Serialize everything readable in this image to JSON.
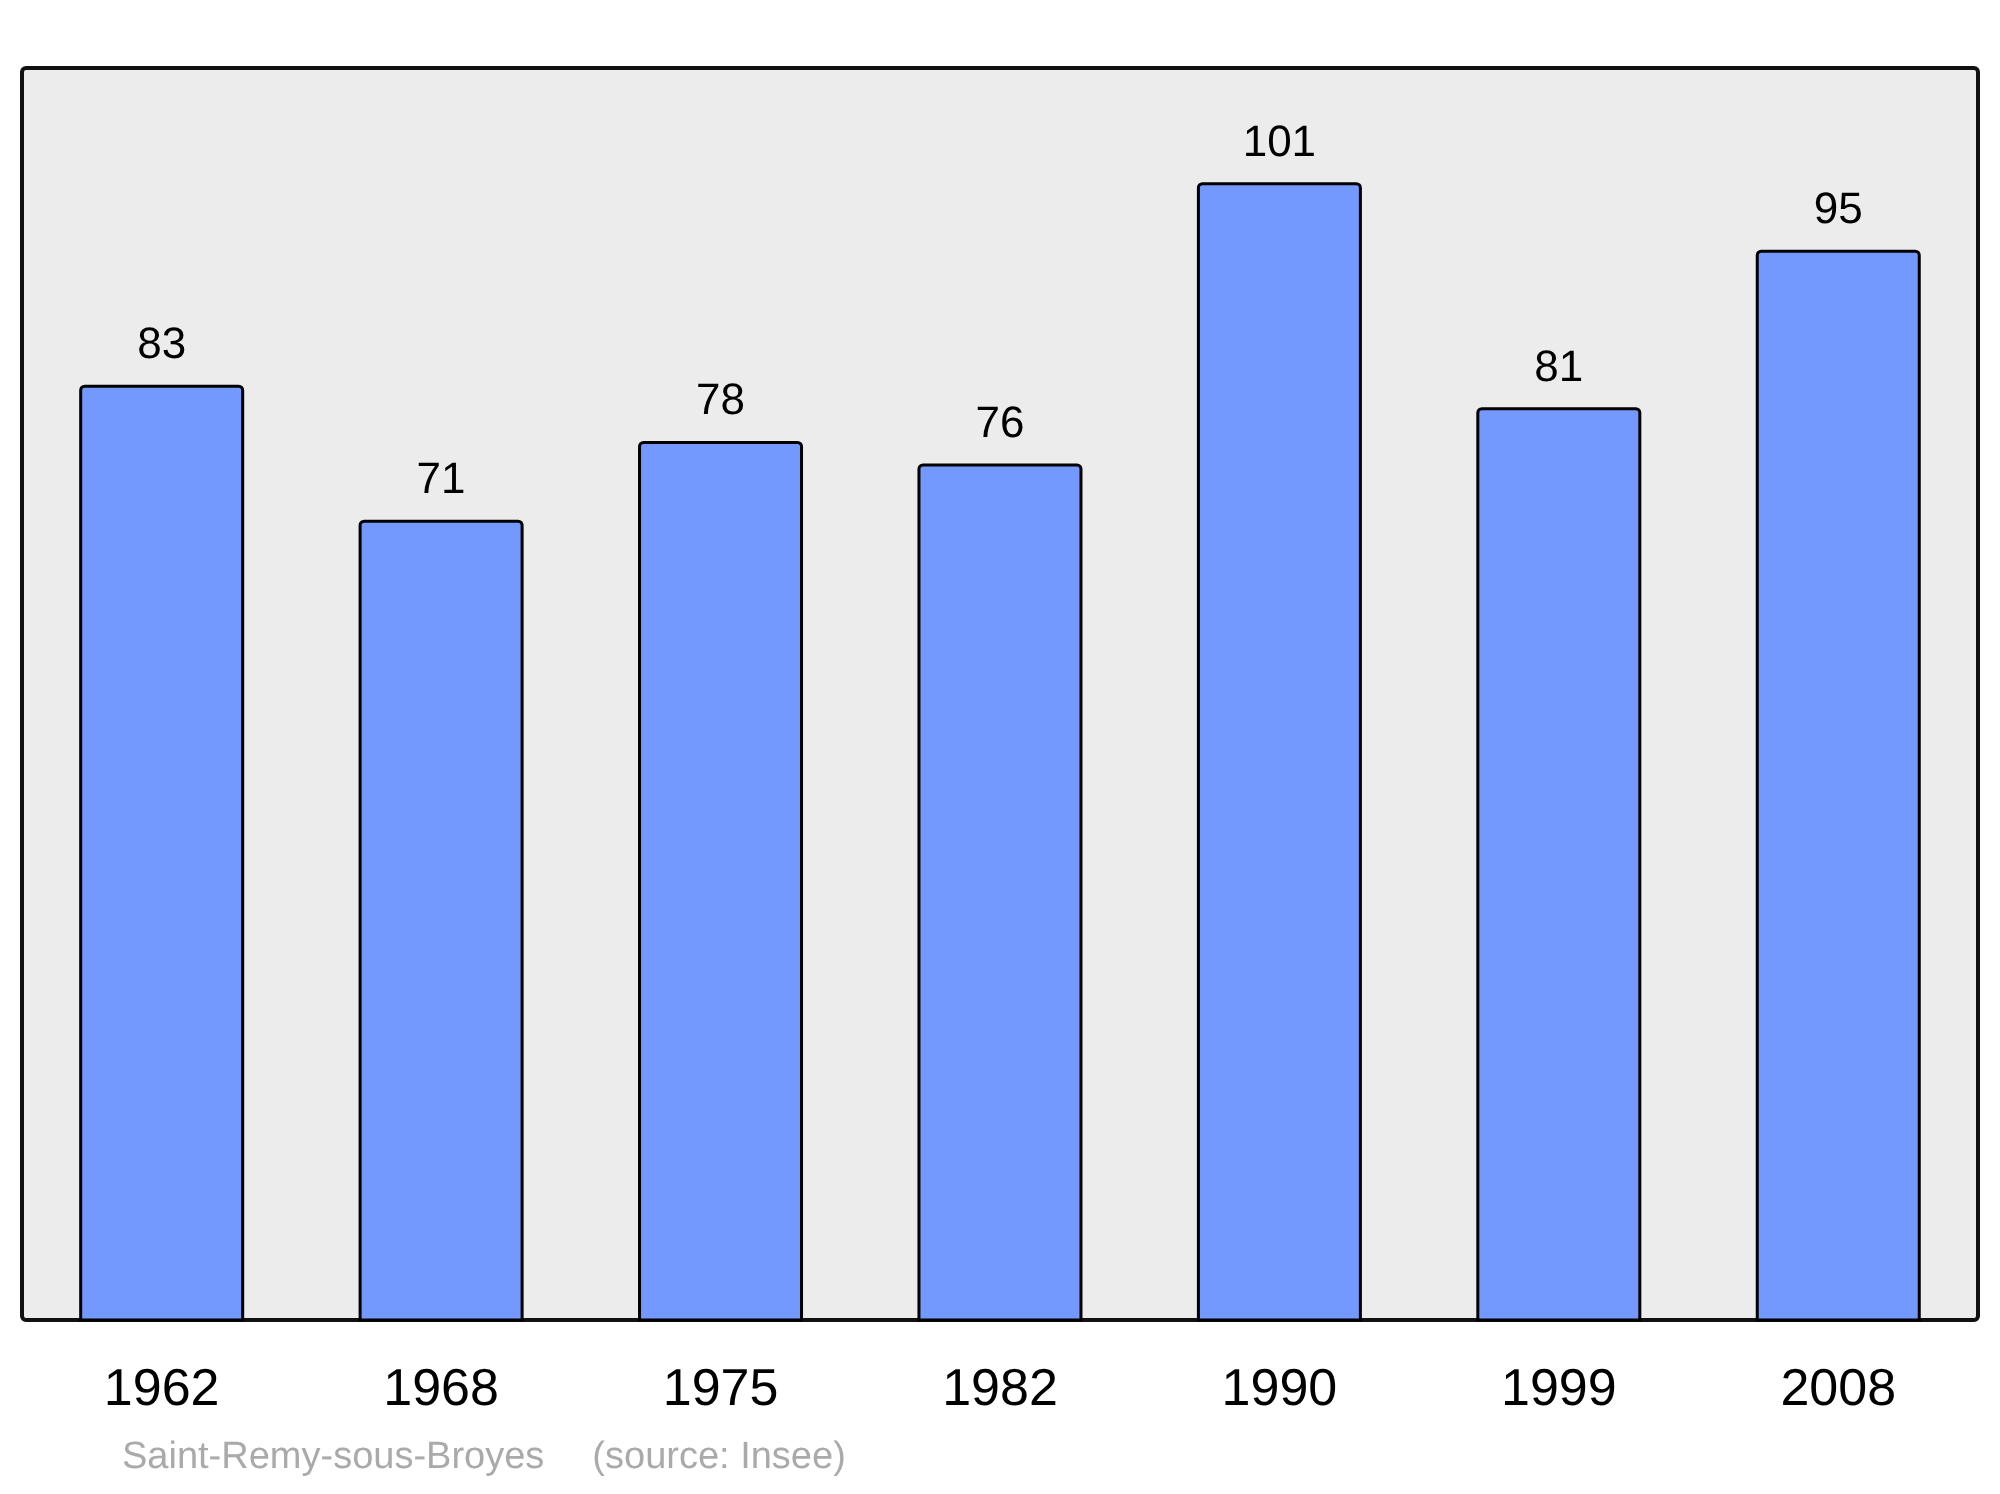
{
  "chart_data": {
    "type": "bar",
    "categories": [
      "1962",
      "1968",
      "1975",
      "1982",
      "1990",
      "1999",
      "2008"
    ],
    "values": [
      83,
      71,
      78,
      76,
      101,
      81,
      95
    ],
    "color": "#7399ff",
    "data_labels": true,
    "annotations": [
      "Saint-Remy-sous-Broyes",
      "(source: Insee)"
    ]
  }
}
